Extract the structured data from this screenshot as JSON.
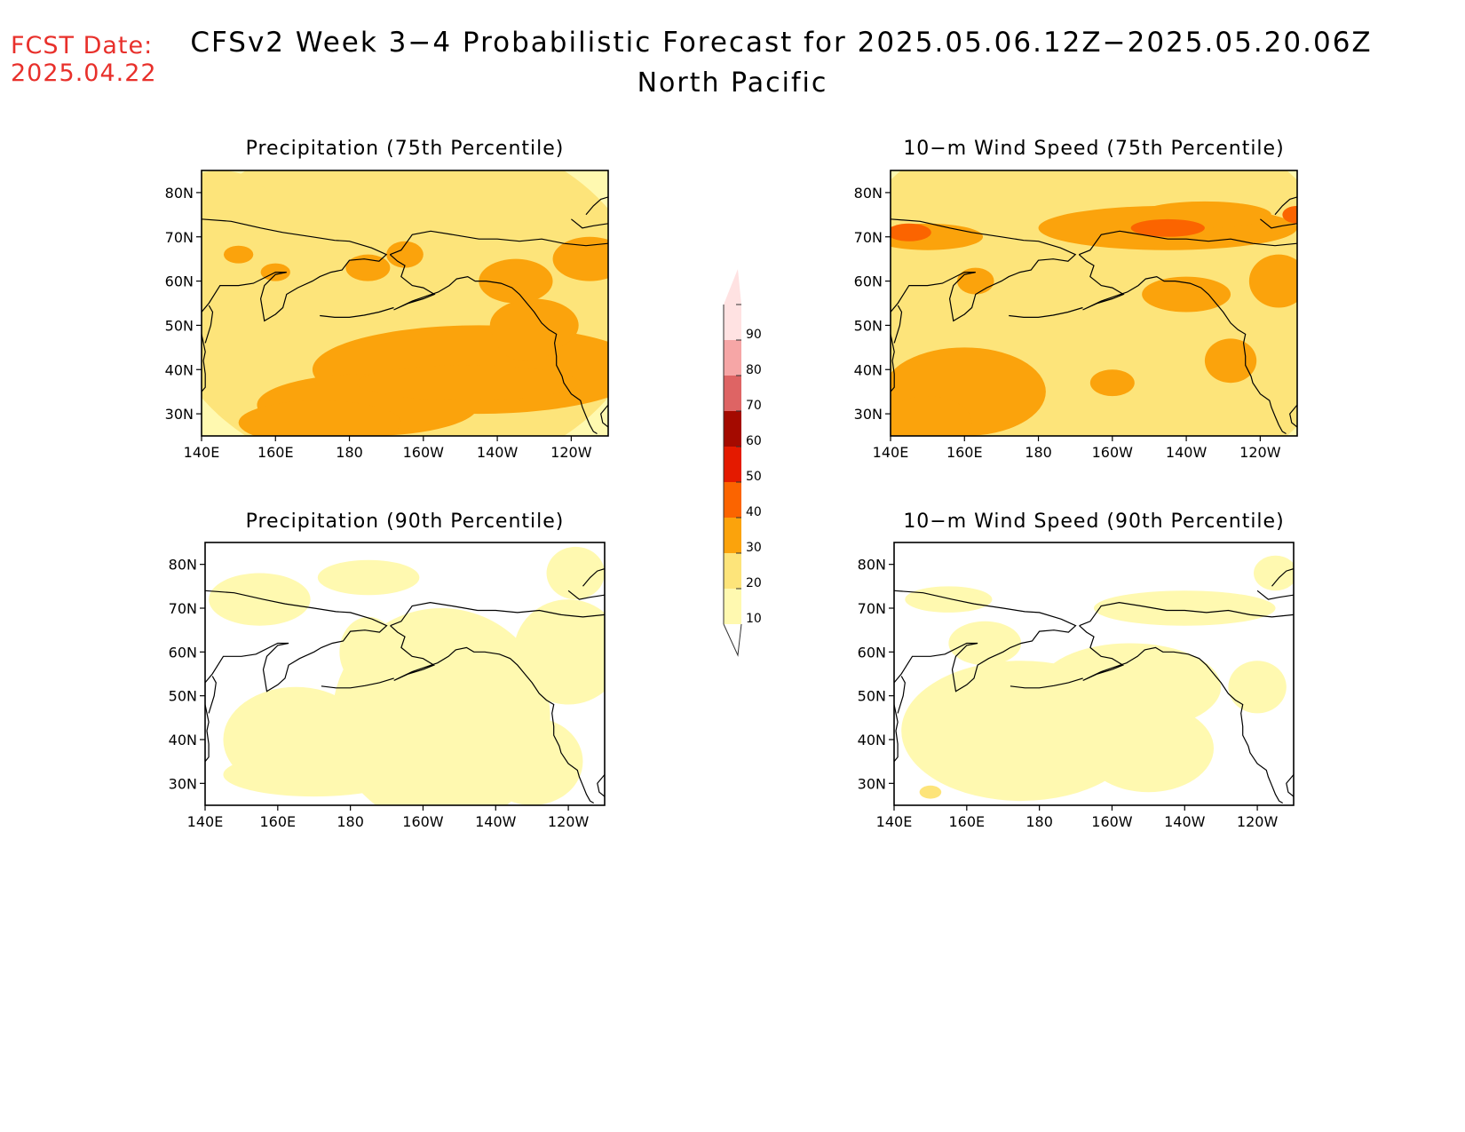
{
  "fcst_date": {
    "label": "FCST Date:",
    "value": "2025.04.22"
  },
  "title": "CFSv2 Week 3−4 Probabilistic Forecast for 2025.05.06.12Z−2025.05.20.06Z",
  "subtitle": "North Pacific",
  "panels": [
    {
      "id": "precip75",
      "title": "Precipitation (75th Percentile)"
    },
    {
      "id": "wind75",
      "title": "10−m Wind Speed (75th Percentile)"
    },
    {
      "id": "precip90",
      "title": "Precipitation (90th Percentile)"
    },
    {
      "id": "wind90",
      "title": "10−m Wind Speed (90th Percentile)"
    }
  ],
  "axes": {
    "x_ticks": [
      "140E",
      "160E",
      "180",
      "160W",
      "140W",
      "120W"
    ],
    "y_ticks": [
      "80N",
      "70N",
      "60N",
      "50N",
      "40N",
      "30N"
    ],
    "lon_range": [
      140,
      250
    ],
    "lat_range": [
      25,
      85
    ]
  },
  "colorbar": {
    "levels": [
      "10",
      "20",
      "30",
      "40",
      "50",
      "60",
      "70",
      "80",
      "90"
    ],
    "colors": [
      "#fff9b0",
      "#fde47a",
      "#fba30c",
      "#fb6400",
      "#e41a00",
      "#a40a00",
      "#de6464",
      "#f6a6a6",
      "#ffe2e2"
    ]
  }
}
